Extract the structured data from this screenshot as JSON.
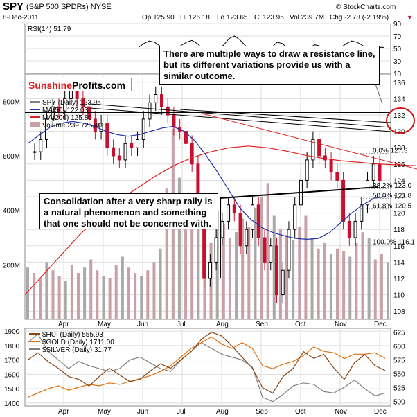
{
  "header": {
    "symbol": "SPY",
    "name": "(S&P 500 SPDRs) NYSE",
    "credit": "© StockCharts.com",
    "date": "8-Dec-2011",
    "op": "Op 125.90",
    "hi": "Hi 126.18",
    "lo": "Lo 123.65",
    "cl": "Cl 123.95",
    "vol": "Vol 239.7M",
    "chg": "Chg -2.78 (-2.19%)",
    "chg_arrow": "▼"
  },
  "logo": {
    "part1": "Sunshine",
    "part2": "Profits.com"
  },
  "annotations": {
    "resistance_note": "There are multiple ways to draw a resistance line, but its different variations provide us with a similar outcome.",
    "consolidation_note": "Consolidation after a very sharp rally is a natural phenomenon and something that one should not be concerned with."
  },
  "colors": {
    "price_up": "#000000",
    "price_down": "#c8102e",
    "ma50": "#1f2fa8",
    "ma200": "#e02020",
    "volume": "#c8a0a8",
    "hui": "#8b4513",
    "gold": "#e07010",
    "silver": "#808080",
    "circle": "#d01010",
    "grid": "#dddddd"
  },
  "chart_data": [
    {
      "type": "line",
      "panel": "rsi",
      "title": "RSI(14) 51.79",
      "ylim": [
        10,
        90
      ],
      "y_ticks": [
        10,
        30,
        50,
        70,
        90
      ],
      "values": [
        52,
        58,
        62,
        60,
        54,
        44,
        40,
        48,
        55,
        60,
        63,
        58,
        50,
        45,
        42,
        48,
        56,
        66,
        70,
        64,
        55,
        46,
        40,
        38,
        44,
        52,
        60,
        58,
        50,
        44,
        40,
        42,
        50,
        56,
        54,
        48,
        44,
        46,
        52,
        58,
        62,
        60,
        55,
        50,
        47,
        52,
        51.79
      ]
    },
    {
      "type": "line",
      "panel": "price",
      "legend": [
        "SPY (Daily) 123.95",
        "MA(50) 122.03",
        "MA(200) 125.80",
        "Volume 239,725,408"
      ],
      "x_tick_labels": [
        "Apr",
        "May",
        "Jun",
        "Jul",
        "Aug",
        "Sep",
        "Oct",
        "Nov",
        "Dec"
      ],
      "y_ticks": [
        108,
        110,
        112,
        114,
        116,
        118,
        120,
        122,
        124,
        126,
        128,
        130,
        132,
        134,
        136
      ],
      "ylim": [
        107,
        137
      ],
      "volume_ticks": [
        "200M",
        "400M",
        "600M",
        "800M"
      ],
      "volume_ylim": [
        0,
        900
      ],
      "fib_levels": [
        {
          "label": "0.0%",
          "value": "127.3",
          "y": 127.3
        },
        {
          "label": "38.2%",
          "value": "123.0",
          "y": 123.0
        },
        {
          "label": "50.0%",
          "value": "121.8",
          "y": 121.8
        },
        {
          "label": "61.8%",
          "value": "120.5",
          "y": 120.5
        },
        {
          "label": "100.0%",
          "value": "116.1",
          "y": 116.1
        }
      ],
      "close": [
        127.5,
        129.0,
        131.5,
        133.0,
        132.5,
        134.0,
        135.5,
        134.0,
        133.0,
        131.5,
        130.0,
        131.0,
        128.0,
        127.0,
        126.5,
        128.5,
        128.0,
        129.0,
        131.5,
        133.5,
        134.5,
        133.0,
        132.0,
        130.5,
        130.0,
        128.5,
        126.0,
        120.0,
        112.0,
        114.0,
        117.0,
        119.0,
        121.0,
        120.0,
        116.0,
        118.0,
        121.0,
        117.0,
        114.0,
        116.0,
        110.0,
        113.0,
        118.0,
        121.0,
        124.0,
        126.5,
        129.0,
        127.0,
        126.5,
        125.0,
        124.0,
        119.0,
        117.0,
        119.0,
        121.0,
        124.0,
        126.0,
        123.95
      ],
      "ma50": [
        128.5,
        129.5,
        130.5,
        131.0,
        131.2,
        131.0,
        130.6,
        130.0,
        129.6,
        129.4,
        129.6,
        130.0,
        130.4,
        130.6,
        130.0,
        128.8,
        127.0,
        125.0,
        122.8,
        120.6,
        119.2,
        118.2,
        117.6,
        117.2,
        116.9,
        116.8,
        116.9,
        117.6,
        118.8,
        120.0,
        121.0,
        121.8,
        122.03
      ],
      "ma200": [
        110.0,
        112.5,
        115.0,
        117.5,
        119.5,
        121.5,
        123.0,
        124.5,
        125.8,
        126.8,
        127.5,
        128.0,
        128.2,
        128.0,
        127.6,
        127.1,
        126.7,
        126.4,
        126.2,
        126.0,
        125.9,
        125.8
      ],
      "volume": [
        190,
        170,
        150,
        210,
        180,
        160,
        140,
        200,
        170,
        190,
        220,
        180,
        160,
        150,
        200,
        230,
        190,
        170,
        160,
        180,
        210,
        260,
        480,
        700,
        520,
        380,
        330,
        360,
        300,
        280,
        400,
        350,
        300,
        320,
        370,
        340,
        410,
        450,
        500,
        380,
        330,
        310,
        290,
        340,
        380,
        300,
        260,
        280,
        240,
        260,
        250,
        230,
        280,
        320,
        300,
        220,
        240,
        210
      ]
    },
    {
      "type": "line",
      "panel": "metals",
      "legend": [
        "$HUI (Daily) 555.93",
        "$GOLD (Daily) 1711.00",
        "$SILVER (Daily) 31.77"
      ],
      "x_tick_labels": [
        "Apr",
        "May",
        "Jun",
        "Jul",
        "Aug",
        "Sep",
        "Oct",
        "Nov",
        "Dec"
      ],
      "y_left_ticks": [
        1400,
        1500,
        1600,
        1700,
        1800,
        1900
      ],
      "y_left_lim": [
        1380,
        1920
      ],
      "y_right_ticks": [
        500,
        525,
        550,
        575,
        600,
        625
      ],
      "y_right_lim": [
        492,
        632
      ],
      "series": [
        {
          "name": "$HUI (Daily) 555.93",
          "values": [
            575,
            588,
            572,
            560,
            545,
            540,
            528,
            545,
            560,
            548,
            536,
            540,
            555,
            568,
            560,
            575,
            590,
            612,
            625,
            618,
            600,
            580,
            560,
            525,
            515,
            545,
            560,
            590,
            578,
            585,
            560,
            540,
            570,
            585,
            565,
            555.93
          ]
        },
        {
          "name": "$GOLD (Daily) 1711.00",
          "values": [
            1440,
            1470,
            1500,
            1520,
            1490,
            1510,
            1530,
            1520,
            1540,
            1530,
            1550,
            1570,
            1590,
            1620,
            1660,
            1720,
            1780,
            1820,
            1860,
            1810,
            1780,
            1820,
            1780,
            1660,
            1640,
            1670,
            1690,
            1730,
            1790,
            1760,
            1750,
            1710,
            1740,
            1740,
            1750,
            1711
          ]
        },
        {
          "name": "$SILVER (Daily) 31.77",
          "values": [
            1820,
            1880,
            1760,
            1700,
            1640,
            1690,
            1660,
            1640,
            1620,
            1640,
            1700,
            1720,
            1680,
            1640,
            1620,
            1700,
            1760,
            1820,
            1780,
            1740,
            1720,
            1700,
            1650,
            1440,
            1410,
            1460,
            1520,
            1540,
            1530,
            1480,
            1470,
            1510,
            1560,
            1500,
            1450,
            1470
          ]
        }
      ]
    }
  ]
}
